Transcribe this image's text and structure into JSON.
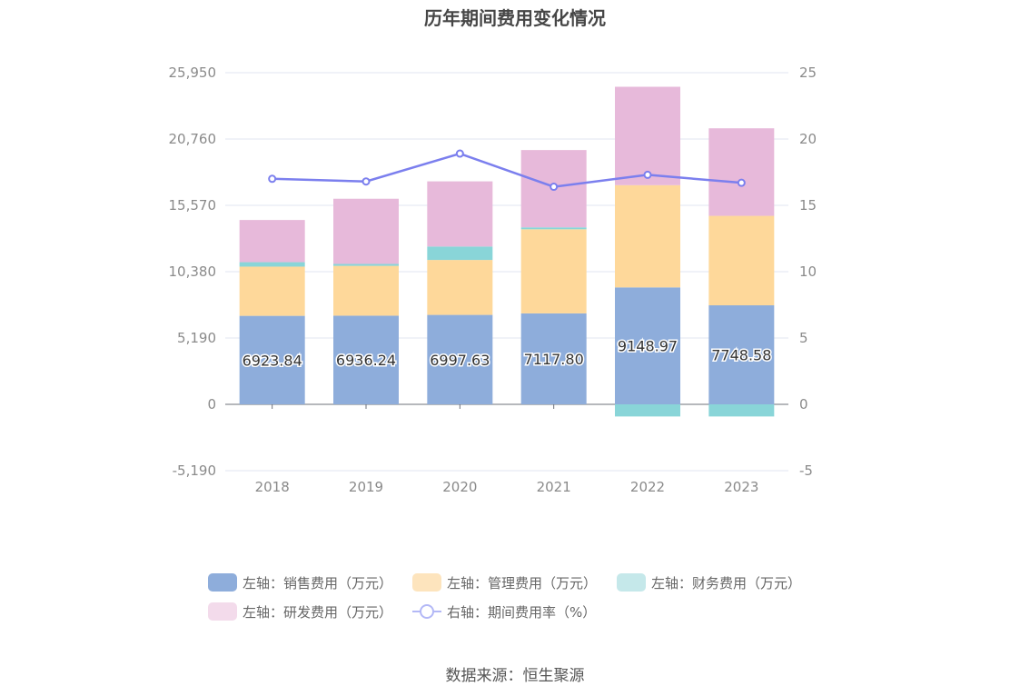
{
  "title": "历年期间费用变化情况",
  "source": "数据来源：恒生聚源",
  "legend": [
    {
      "label": "左轴：销售费用（万元）",
      "color": "#8eaddb",
      "kind": "bar"
    },
    {
      "label": "左轴：管理费用（万元）",
      "color": "#fde4bd",
      "kind": "bar"
    },
    {
      "label": "左轴：财务费用（万元）",
      "color": "#c5e8ea",
      "kind": "bar"
    },
    {
      "label": "左轴：研发费用（万元）",
      "color": "#f3dbeb",
      "kind": "bar"
    },
    {
      "label": "右轴：期间费用率（%）",
      "color": "#7b7fee",
      "kind": "line"
    }
  ],
  "chart_data": {
    "type": "bar",
    "stacked": true,
    "title": "历年期间费用变化情况",
    "categories": [
      "2018",
      "2019",
      "2020",
      "2021",
      "2022",
      "2023"
    ],
    "left_axis": {
      "ylim": [
        -5190,
        25950
      ],
      "ticks": [
        "-5,190",
        "0",
        "5,190",
        "10,380",
        "15,570",
        "20,760",
        "25,950"
      ]
    },
    "right_axis": {
      "ylim": [
        -5,
        25
      ],
      "ticks": [
        "-5",
        "0",
        "5",
        "10",
        "15",
        "20",
        "25"
      ]
    },
    "series": [
      {
        "name": "左轴：销售费用（万元）",
        "axis": "left",
        "color": "#8eaddb",
        "values": [
          6923.84,
          6936.24,
          6997.63,
          7117.8,
          9148.97,
          7748.58
        ],
        "labels": [
          "6923.84",
          "6936.24",
          "6997.63",
          "7117.80",
          "9148.97",
          "7748.58"
        ]
      },
      {
        "name": "左轴：管理费用（万元）",
        "axis": "left",
        "color": "#fed89a",
        "values": [
          3850,
          3900,
          4300,
          6580,
          8000,
          7000
        ]
      },
      {
        "name": "左轴：财务费用（万元）",
        "axis": "left",
        "color": "#89d5d8",
        "values": [
          350,
          150,
          1050,
          150,
          -950,
          -950
        ]
      },
      {
        "name": "左轴：研发费用（万元）",
        "axis": "left",
        "color": "#e7b9da",
        "values": [
          3300,
          5100,
          5100,
          6050,
          7700,
          6850
        ]
      },
      {
        "name": "右轴：期间费用率（%）",
        "axis": "right",
        "type": "line",
        "color": "#7b7fee",
        "values": [
          17.0,
          16.8,
          18.9,
          16.4,
          17.3,
          16.7
        ]
      }
    ],
    "grid": true,
    "legend_position": "bottom"
  }
}
